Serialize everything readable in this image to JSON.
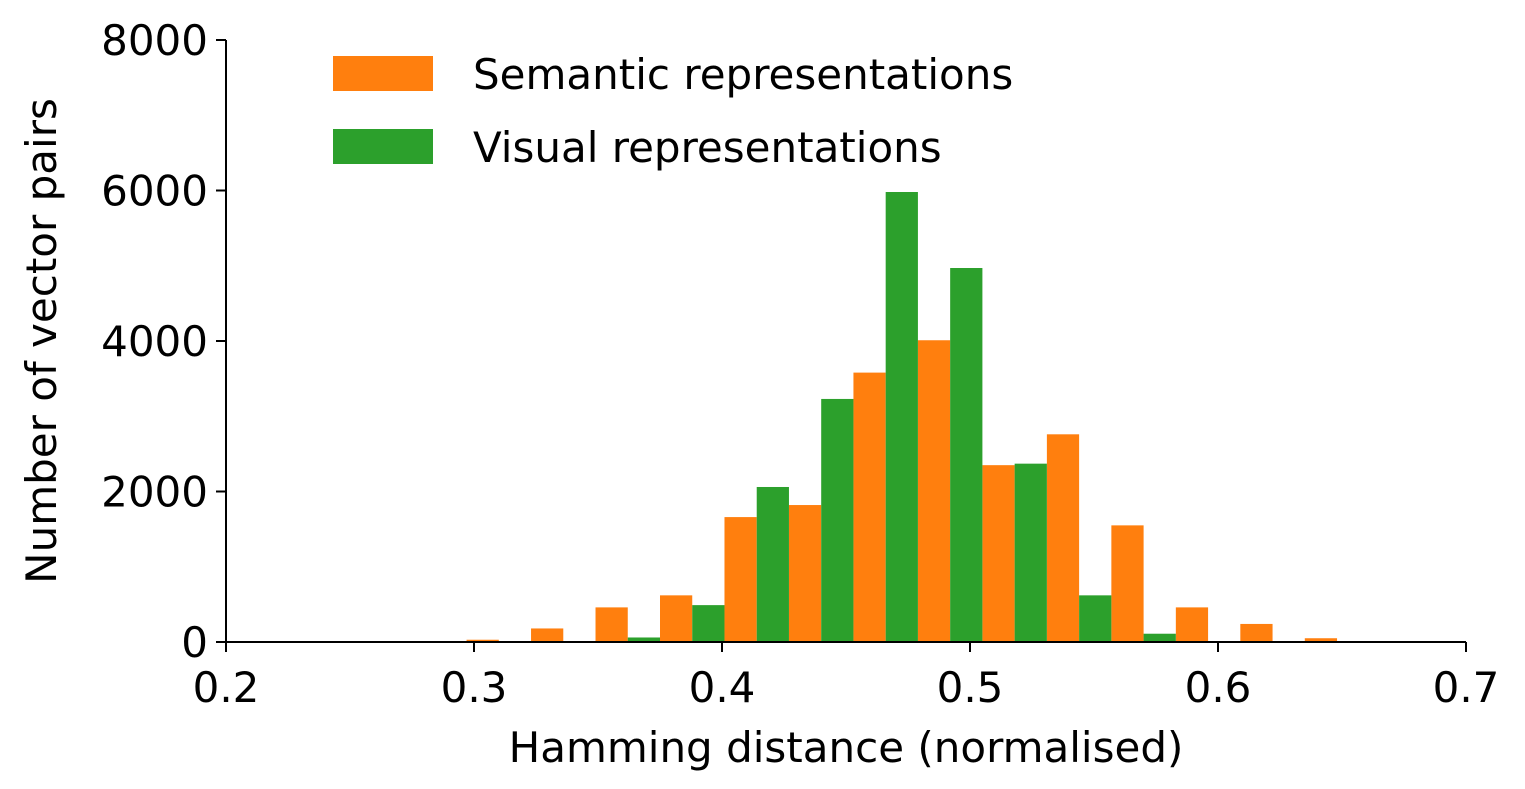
{
  "chart_data": {
    "type": "bar",
    "title": "",
    "xlabel": "Hamming distance (normalised)",
    "ylabel": "Number of vector pairs",
    "xlim": [
      0.2,
      0.7
    ],
    "ylim": [
      0,
      8000
    ],
    "xticks": [
      "0.2",
      "0.3",
      "0.4",
      "0.5",
      "0.6",
      "0.7"
    ],
    "yticks": [
      "0",
      "2000",
      "4000",
      "6000",
      "8000"
    ],
    "bin_width": 0.026,
    "bins": [
      0.31,
      0.336,
      0.362,
      0.388,
      0.414,
      0.44,
      0.466,
      0.492,
      0.518,
      0.544,
      0.57,
      0.596,
      0.622,
      0.648
    ],
    "series": [
      {
        "name": "Semantic representations",
        "color": "#ff7f0e",
        "values": [
          30,
          180,
          460,
          620,
          1660,
          1820,
          3580,
          4010,
          2350,
          2760,
          1550,
          460,
          240,
          50
        ]
      },
      {
        "name": "Visual representations",
        "color": "#2ca02c",
        "values": [
          0,
          0,
          60,
          490,
          2060,
          3230,
          5980,
          4970,
          2370,
          620,
          110,
          0,
          0,
          0
        ]
      }
    ],
    "legend": {
      "position": "top-left"
    },
    "grid": false
  }
}
